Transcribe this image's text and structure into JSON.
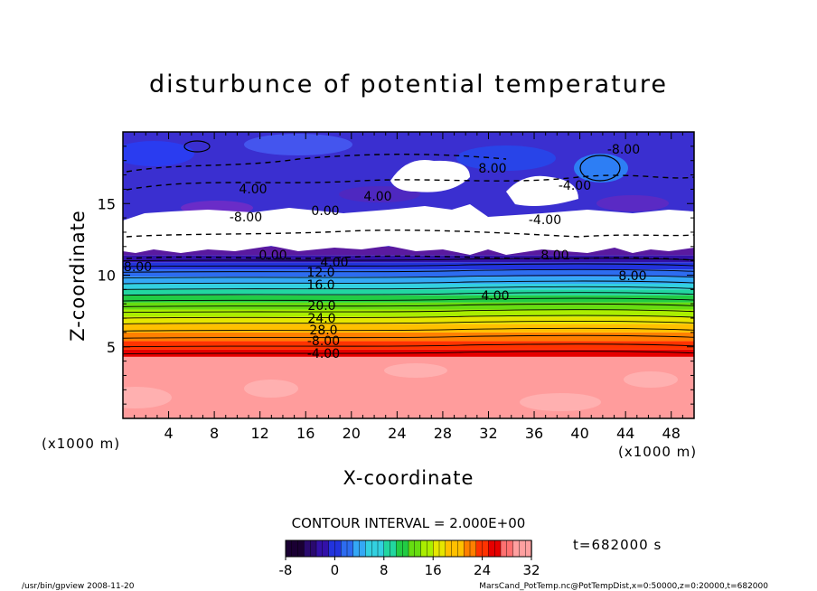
{
  "chart_data": {
    "type": "heatmap",
    "title": "disturbunce of potential temperature",
    "xlabel": "X-coordinate",
    "ylabel": "Z-coordinate",
    "x_unit": "(x1000 m)",
    "z_unit": "(x1000 m)",
    "xlim": [
      0,
      50
    ],
    "ylim": [
      0,
      20
    ],
    "x_ticks": [
      "4",
      "8",
      "12",
      "16",
      "20",
      "24",
      "28",
      "32",
      "36",
      "40",
      "44",
      "48"
    ],
    "y_ticks": [
      "5",
      "10",
      "15"
    ],
    "contour_labels": [
      "4.00",
      "8.00",
      "-8.00",
      "4.00",
      "0.00",
      "-4.00",
      "0.00",
      "4.00",
      "12.0",
      "16.0",
      "20.0",
      "24.0",
      "28.0",
      "-8.00",
      "-4.00",
      "8.00",
      "-4.00",
      "-8.00",
      "-8.00",
      "4.00",
      "8.00"
    ],
    "contour_interval_text": "CONTOUR INTERVAL = 2.000E+00",
    "colorbar": {
      "ticks": [
        "-8",
        "0",
        "8",
        "16",
        "24",
        "32"
      ],
      "range": [
        -8,
        32
      ],
      "colors": [
        "#1a0033",
        "#2a0a6e",
        "#3311a8",
        "#2233dd",
        "#2d6cf0",
        "#34a8f5",
        "#33d0e0",
        "#22d6a0",
        "#22cc44",
        "#66dd11",
        "#aaee00",
        "#e6e600",
        "#ffc000",
        "#ff8000",
        "#ff3300",
        "#e60000",
        "#ff7070",
        "#ffa0a0"
      ]
    },
    "time_text": "t=682000 s"
  },
  "footer": {
    "left": "/usr/bin/gpview   2008-11-20",
    "right": "MarsCand_PotTemp.nc@PotTempDist,x=0:50000,z=0:20000,t=682000"
  }
}
